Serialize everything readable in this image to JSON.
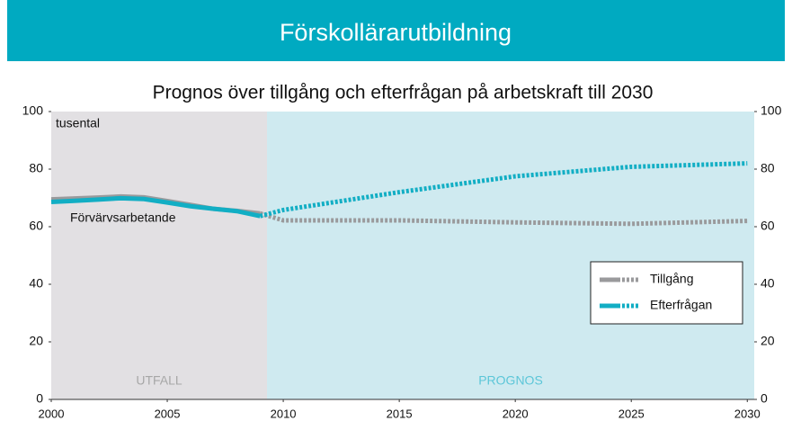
{
  "header": {
    "title": "Förskollärarutbildning"
  },
  "chart_data": {
    "type": "line",
    "title": "Prognos över tillgång och efterfrågan på arbetskraft till 2030",
    "unit_label": "tusental",
    "annotations": [
      "Förvärvsarbetande"
    ],
    "regions": [
      {
        "label": "UTFALL",
        "range": [
          2000,
          2009.3
        ],
        "color": "#e2e0e3",
        "label_color": "#a7a7a7"
      },
      {
        "label": "PROGNOS",
        "range": [
          2009.3,
          2030.3
        ],
        "color": "#cfeaf0",
        "label_color": "#5cc6d8"
      }
    ],
    "x": [
      2000,
      2001,
      2002,
      2003,
      2004,
      2005,
      2006,
      2007,
      2008,
      2009,
      2010,
      2015,
      2020,
      2025,
      2030
    ],
    "series": [
      {
        "name": "Tillgång",
        "color": "#9a9a9c",
        "values": [
          69.5,
          69.8,
          70.1,
          70.5,
          70.2,
          68.9,
          67.6,
          66.2,
          65.5,
          64.6,
          62.2,
          62.2,
          61.5,
          61,
          62
        ]
      },
      {
        "name": "Efterfrågan",
        "color": "#12aec4",
        "values": [
          68.6,
          69,
          69.4,
          69.9,
          69.6,
          68.4,
          67.1,
          66.2,
          65.4,
          63.7,
          65.8,
          72,
          77.5,
          80.8,
          82
        ]
      }
    ],
    "xlim": [
      2000,
      2030.3
    ],
    "xticks": [
      2000,
      2005,
      2010,
      2015,
      2020,
      2025,
      2030
    ],
    "ylim": [
      0,
      100
    ],
    "yticks": [
      0,
      20,
      40,
      60,
      80,
      100
    ],
    "y2lim": [
      0,
      100
    ],
    "y2ticks": [
      0,
      20,
      40,
      60,
      80,
      100
    ],
    "legend": "right"
  }
}
